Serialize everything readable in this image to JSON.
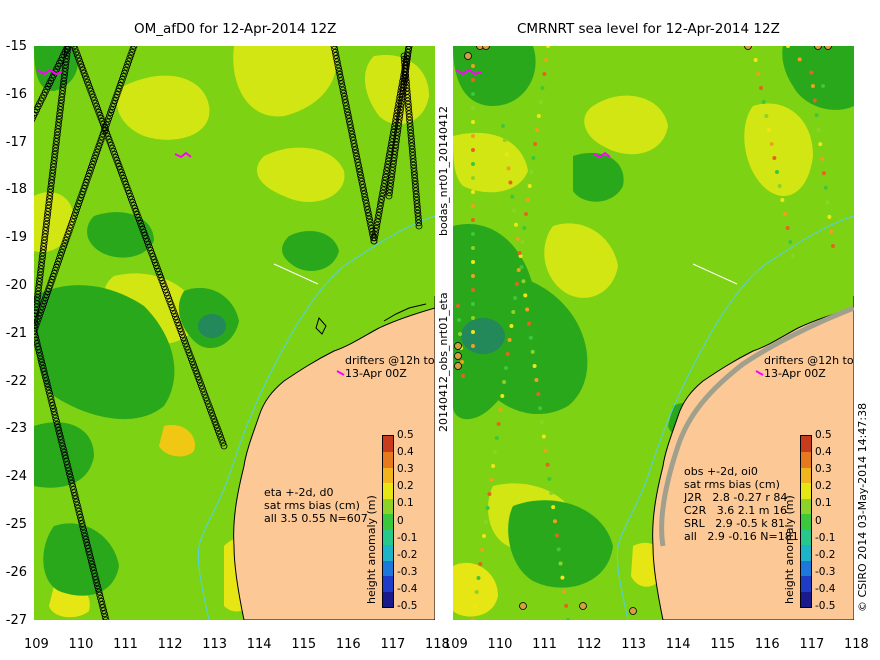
{
  "panels": [
    {
      "title": "OM_afD0 for 12-Apr-2014 12Z",
      "annotation": [
        "eta +-2d, d0",
        "sat rms bias (cm)",
        "all 3.5 0.55 N=607"
      ],
      "drifters": [
        "drifters @12h to",
        "13-Apr 00Z"
      ]
    },
    {
      "title": "CMRNRT sea level  for 12-Apr-2014 12Z",
      "annotation": [
        "obs +-2d, oi0",
        "sat rms bias (cm)",
        "J2R   2.8 -0.27 r 84",
        "C2R   3.6 2.1 m 16",
        "SRL   2.9 -0.5 k 81",
        "all   2.9 -0.16 N=181"
      ],
      "drifters": [
        "drifters @12h to",
        "13-Apr 00Z"
      ]
    }
  ],
  "axes": {
    "y_ticks": [
      "-15",
      "-16",
      "-17",
      "-18",
      "-19",
      "-20",
      "-21",
      "-22",
      "-23",
      "-24",
      "-25",
      "-26",
      "-27"
    ],
    "x_ticks": [
      "109",
      "110",
      "111",
      "112",
      "113",
      "114",
      "115",
      "116",
      "117",
      "118"
    ]
  },
  "colorbar": {
    "label": "height anomaly (m)",
    "ticks": [
      "0.5",
      "0.4",
      "0.3",
      "0.2",
      "0.1",
      "0",
      "-0.1",
      "-0.2",
      "-0.3",
      "-0.4",
      "-0.5"
    ],
    "colors": [
      "#1a1a8c",
      "#1e3cc8",
      "#1e78dc",
      "#1eb4c8",
      "#28c88c",
      "#3cc83c",
      "#8cd228",
      "#e6e614",
      "#f0b41e",
      "#e6781e",
      "#c83c1e"
    ]
  },
  "side_labels": {
    "run": "bodas_nrt01_20140412",
    "file": "20140412_obs_nrt01_eta",
    "credit": "© CSIRO 2014  03-May-2014 14:47:38"
  },
  "colors": {
    "land": "#fbc896",
    "sea_mid": "#7ed214",
    "sea_low": "#2aa81c",
    "sea_high": "#d2e614"
  }
}
